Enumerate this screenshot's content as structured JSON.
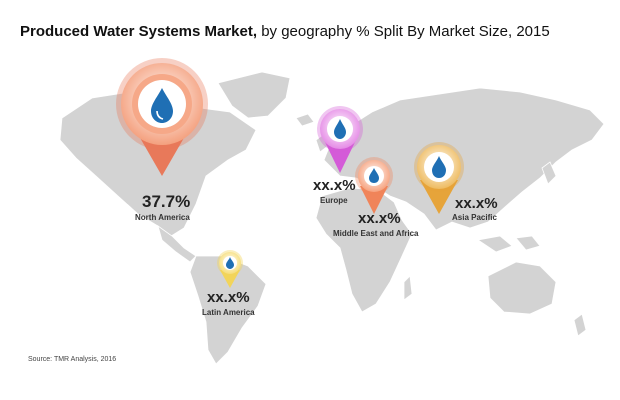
{
  "title": {
    "bold": "Produced Water Systems Market,",
    "rest": " by geography % Split By Market Size, 2015"
  },
  "regions": [
    {
      "id": "north-america",
      "name": "North America",
      "value": "37.7%",
      "color": "#e8795a"
    },
    {
      "id": "europe",
      "name": "Europe",
      "value": "xx.x%",
      "color": "#d45bd8"
    },
    {
      "id": "middle-east-africa",
      "name": "Middle  East and Africa",
      "value": "xx.x%",
      "color": "#f0845a"
    },
    {
      "id": "asia-pacific",
      "name": "Asia Pacific",
      "value": "xx.x%",
      "color": "#e6a43a"
    },
    {
      "id": "latin-america",
      "name": "Latin America",
      "value": "xx.x%",
      "color": "#f2d45a"
    }
  ],
  "source": "Source: TMR Analysis, 2016"
}
